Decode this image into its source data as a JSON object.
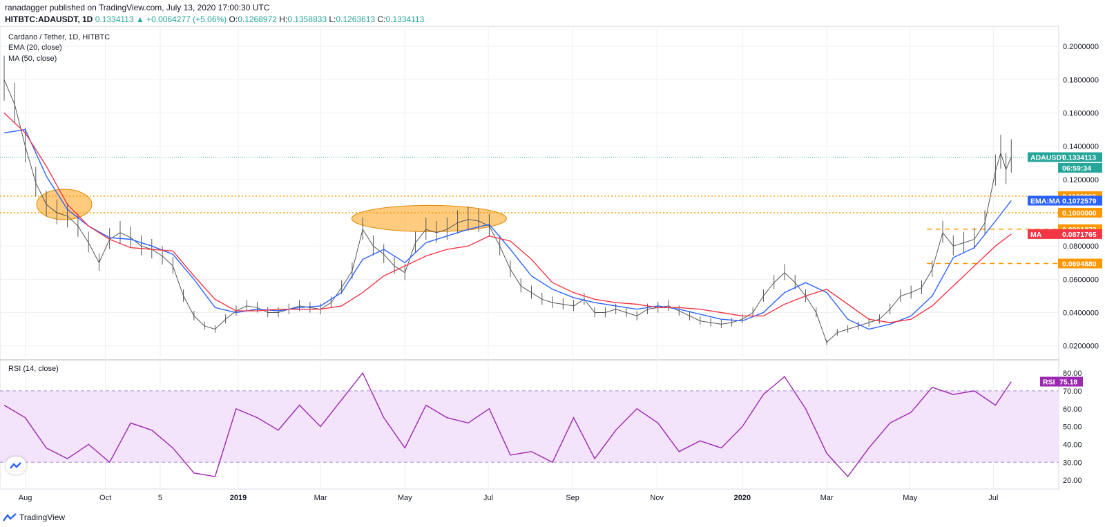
{
  "header": {
    "publisher_line": "ranadagger published on TradingView.com, July 13, 2020 17:00:30 UTC",
    "symbol": "HITBTC:ADAUSDT, 1D",
    "change": "0.1334113 ▲ +0.0064277 (+5.06%)",
    "o_label": "O:",
    "o_value": "0.1268972",
    "h_label": "H:",
    "h_value": "0.1358833",
    "l_label": "L:",
    "l_value": "0.1263613",
    "c_label": "C:",
    "c_value": "0.1334113"
  },
  "legend": {
    "title": "Cardano / Tether, 1D, HITBTC",
    "ema": "EMA (20, close)",
    "ma": "MA (50, close)",
    "rsi": "RSI (14, close)"
  },
  "branding": {
    "logo_text": "TradingView"
  },
  "colors": {
    "up": "#26a69a",
    "ema": "#2962ff",
    "ma": "#f23645",
    "rsi": "#9c27b0",
    "rsi_band": "#f3e3fb",
    "orange": "#ff9800",
    "grid": "#eceff3"
  },
  "price_tags": [
    {
      "text": "ADAUSDT",
      "value": 0.1334113,
      "value_text": "0.1334113",
      "color": "#26a69a"
    },
    {
      "text": "",
      "value": 0.127,
      "value_text": "06:59:34",
      "color": "#26a69a"
    },
    {
      "text": "",
      "value": 0.11,
      "value_text": "0.1100000",
      "color": "#ff9800"
    },
    {
      "text": "EMA:MA",
      "value": 0.1072579,
      "value_text": "0.1072579",
      "color": "#2962ff"
    },
    {
      "text": "",
      "value": 0.1,
      "value_text": "0.1000000",
      "color": "#ff9800"
    },
    {
      "text": "",
      "value": 0.0901373,
      "value_text": "0.0901373",
      "color": "#ff9800"
    },
    {
      "text": "MA",
      "value": 0.0871765,
      "value_text": "0.0871765",
      "color": "#f23645"
    },
    {
      "text": "",
      "value": 0.069488,
      "value_text": "0.0694880",
      "color": "#ff9800"
    }
  ],
  "rsi_tag": {
    "text": "RSI",
    "value": 75.18,
    "value_text": "75.18"
  },
  "chart_data": {
    "type": "line",
    "title": "Cardano / Tether, 1D, HITBTC",
    "price_axis": {
      "ticks": [
        "0.2000000",
        "0.1800000",
        "0.1600000",
        "0.1400000",
        "0.1200000",
        "0.0800000",
        "0.0600000",
        "0.0400000",
        "0.0200000"
      ],
      "tick_values": [
        0.2,
        0.18,
        0.16,
        0.14,
        0.12,
        0.08,
        0.06,
        0.04,
        0.02
      ],
      "ylim": [
        0.012,
        0.21
      ]
    },
    "rsi_axis": {
      "ticks": [
        "80.00",
        "70.00",
        "60.00",
        "50.00",
        "40.00",
        "30.00",
        "20.00"
      ],
      "tick_values": [
        80,
        70,
        60,
        50,
        40,
        30,
        20
      ],
      "ylim": [
        15,
        87
      ],
      "band": [
        30,
        70
      ]
    },
    "x_axis": {
      "labels": [
        "Aug",
        "Oct",
        "5",
        "2019",
        "Mar",
        "May",
        "Jul",
        "Sep",
        "Nov",
        "2020",
        "Mar",
        "May",
        "Jul"
      ],
      "label_pos": [
        0.02,
        0.096,
        0.148,
        0.222,
        0.3,
        0.38,
        0.459,
        0.539,
        0.619,
        0.7,
        0.78,
        0.859,
        0.938
      ]
    },
    "series": [
      {
        "name": "ADAUSDT",
        "x": [
          0,
          0.01,
          0.02,
          0.03,
          0.04,
          0.05,
          0.06,
          0.07,
          0.08,
          0.09,
          0.1,
          0.11,
          0.12,
          0.13,
          0.14,
          0.15,
          0.16,
          0.17,
          0.18,
          0.19,
          0.2,
          0.21,
          0.22,
          0.23,
          0.24,
          0.25,
          0.26,
          0.27,
          0.28,
          0.29,
          0.3,
          0.31,
          0.32,
          0.33,
          0.34,
          0.35,
          0.36,
          0.37,
          0.38,
          0.39,
          0.4,
          0.41,
          0.42,
          0.43,
          0.44,
          0.45,
          0.46,
          0.47,
          0.48,
          0.49,
          0.5,
          0.51,
          0.52,
          0.53,
          0.54,
          0.55,
          0.56,
          0.57,
          0.58,
          0.59,
          0.6,
          0.61,
          0.62,
          0.63,
          0.64,
          0.65,
          0.66,
          0.67,
          0.68,
          0.69,
          0.7,
          0.71,
          0.72,
          0.73,
          0.74,
          0.75,
          0.76,
          0.77,
          0.78,
          0.79,
          0.8,
          0.81,
          0.82,
          0.83,
          0.84,
          0.85,
          0.86,
          0.87,
          0.88,
          0.89,
          0.9,
          0.91,
          0.92,
          0.93,
          0.94,
          0.945,
          0.95,
          0.955
        ],
        "values": [
          0.18,
          0.165,
          0.14,
          0.118,
          0.105,
          0.1,
          0.098,
          0.092,
          0.082,
          0.07,
          0.084,
          0.088,
          0.085,
          0.08,
          0.078,
          0.074,
          0.068,
          0.05,
          0.038,
          0.032,
          0.03,
          0.036,
          0.041,
          0.044,
          0.043,
          0.04,
          0.04,
          0.042,
          0.044,
          0.043,
          0.042,
          0.046,
          0.055,
          0.065,
          0.09,
          0.08,
          0.075,
          0.068,
          0.064,
          0.082,
          0.09,
          0.088,
          0.09,
          0.094,
          0.096,
          0.095,
          0.092,
          0.08,
          0.066,
          0.056,
          0.052,
          0.048,
          0.046,
          0.045,
          0.044,
          0.048,
          0.04,
          0.04,
          0.042,
          0.04,
          0.038,
          0.042,
          0.043,
          0.044,
          0.041,
          0.038,
          0.035,
          0.034,
          0.033,
          0.034,
          0.036,
          0.04,
          0.05,
          0.058,
          0.064,
          0.058,
          0.05,
          0.04,
          0.022,
          0.028,
          0.03,
          0.032,
          0.034,
          0.036,
          0.042,
          0.05,
          0.052,
          0.055,
          0.066,
          0.088,
          0.08,
          0.082,
          0.084,
          0.094,
          0.125,
          0.136,
          0.126,
          0.1334
        ]
      },
      {
        "name": "EMA",
        "x": [
          0,
          0.02,
          0.04,
          0.06,
          0.08,
          0.1,
          0.12,
          0.14,
          0.16,
          0.18,
          0.2,
          0.22,
          0.24,
          0.26,
          0.28,
          0.3,
          0.32,
          0.34,
          0.36,
          0.38,
          0.4,
          0.42,
          0.44,
          0.46,
          0.48,
          0.5,
          0.52,
          0.54,
          0.56,
          0.58,
          0.6,
          0.62,
          0.64,
          0.66,
          0.68,
          0.7,
          0.72,
          0.74,
          0.76,
          0.78,
          0.8,
          0.82,
          0.84,
          0.86,
          0.88,
          0.9,
          0.92,
          0.94,
          0.955
        ],
        "values": [
          0.148,
          0.15,
          0.122,
          0.102,
          0.092,
          0.085,
          0.084,
          0.08,
          0.075,
          0.06,
          0.043,
          0.04,
          0.042,
          0.041,
          0.043,
          0.044,
          0.052,
          0.072,
          0.078,
          0.07,
          0.082,
          0.086,
          0.09,
          0.093,
          0.078,
          0.062,
          0.054,
          0.049,
          0.046,
          0.044,
          0.042,
          0.044,
          0.042,
          0.039,
          0.036,
          0.035,
          0.04,
          0.052,
          0.058,
          0.052,
          0.036,
          0.03,
          0.033,
          0.038,
          0.05,
          0.073,
          0.079,
          0.095,
          0.1073
        ]
      },
      {
        "name": "MA",
        "x": [
          0,
          0.02,
          0.04,
          0.06,
          0.08,
          0.1,
          0.12,
          0.14,
          0.16,
          0.18,
          0.2,
          0.22,
          0.24,
          0.26,
          0.28,
          0.3,
          0.32,
          0.34,
          0.36,
          0.38,
          0.4,
          0.42,
          0.44,
          0.46,
          0.48,
          0.5,
          0.52,
          0.54,
          0.56,
          0.58,
          0.6,
          0.62,
          0.64,
          0.66,
          0.68,
          0.7,
          0.72,
          0.74,
          0.76,
          0.78,
          0.8,
          0.82,
          0.84,
          0.86,
          0.88,
          0.9,
          0.92,
          0.94,
          0.955
        ],
        "values": [
          0.16,
          0.148,
          0.128,
          0.105,
          0.092,
          0.084,
          0.079,
          0.078,
          0.077,
          0.062,
          0.048,
          0.041,
          0.041,
          0.042,
          0.042,
          0.042,
          0.044,
          0.052,
          0.062,
          0.068,
          0.074,
          0.078,
          0.08,
          0.086,
          0.083,
          0.072,
          0.058,
          0.052,
          0.048,
          0.046,
          0.045,
          0.043,
          0.043,
          0.042,
          0.04,
          0.038,
          0.038,
          0.045,
          0.05,
          0.054,
          0.045,
          0.036,
          0.034,
          0.036,
          0.044,
          0.056,
          0.068,
          0.08,
          0.0872
        ]
      },
      {
        "name": "RSI",
        "x": [
          0,
          0.02,
          0.04,
          0.06,
          0.08,
          0.1,
          0.12,
          0.14,
          0.16,
          0.18,
          0.2,
          0.22,
          0.24,
          0.26,
          0.28,
          0.3,
          0.32,
          0.34,
          0.36,
          0.38,
          0.4,
          0.42,
          0.44,
          0.46,
          0.48,
          0.5,
          0.52,
          0.54,
          0.56,
          0.58,
          0.6,
          0.62,
          0.64,
          0.66,
          0.68,
          0.7,
          0.72,
          0.74,
          0.76,
          0.78,
          0.8,
          0.82,
          0.84,
          0.86,
          0.88,
          0.9,
          0.92,
          0.94,
          0.955
        ],
        "values": [
          62,
          55,
          38,
          32,
          40,
          30,
          52,
          48,
          38,
          24,
          22,
          60,
          55,
          48,
          62,
          50,
          65,
          80,
          55,
          38,
          62,
          55,
          52,
          60,
          34,
          36,
          30,
          55,
          32,
          48,
          60,
          52,
          36,
          42,
          38,
          50,
          68,
          78,
          60,
          35,
          22,
          38,
          52,
          58,
          72,
          68,
          70,
          62,
          75.18
        ]
      }
    ],
    "annotations": {
      "hlines": [
        0.11,
        0.1
      ],
      "dashed_levels": [
        0.0901373,
        0.069488
      ],
      "current_price": 0.1334113
    }
  }
}
